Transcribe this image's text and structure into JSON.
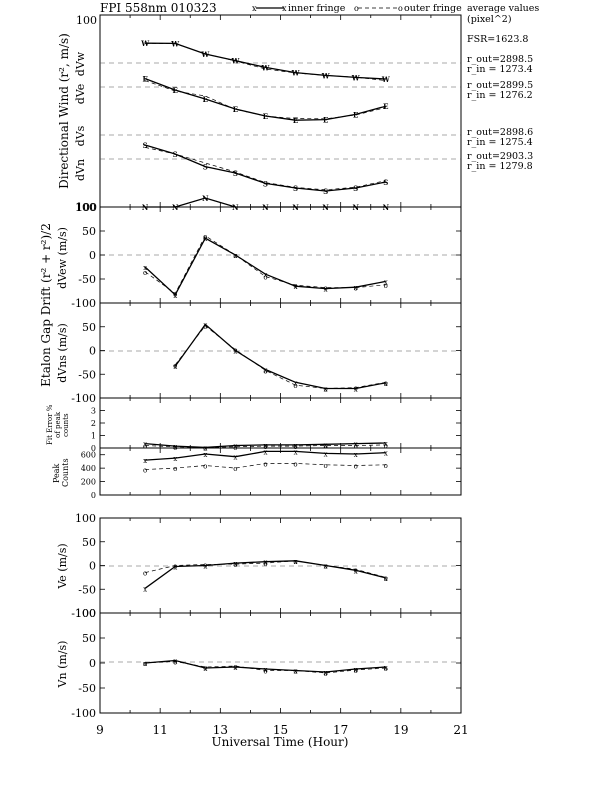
{
  "title": "FPI 558nm 010323",
  "legend": {
    "inner": "inner fringe",
    "outer": "outer fringe",
    "average_label": "average values",
    "average_units": "(pixel^2)",
    "fsr": "FSR=1623.8",
    "radii": [
      [
        "r_out=2898.5",
        "r_in = 1273.4"
      ],
      [
        "r_out=2899.5",
        "r_in = 1276.2"
      ],
      [
        "r_out=2898.6",
        "r_in = 1275.4"
      ],
      [
        "r_out=2903.3",
        "r_in = 1279.8"
      ]
    ]
  },
  "xaxis": {
    "label": "Universal Time (Hour)",
    "min": 9,
    "max": 21,
    "ticks": [
      "9",
      "11",
      "13",
      "15",
      "17",
      "19",
      "21"
    ]
  },
  "panel_labels": {
    "group1_ylabel": "Directional Wind (r², m/s)",
    "group2_ylabel": "Etalon Gap Drift (r² + r²)/2",
    "dvw": "dVw",
    "dve": "dVe",
    "dvs": "dVs",
    "dvn": "dVn",
    "dvew": "dVew (m/s)",
    "dvns": "dVns (m/s)",
    "fit_error": "Fit Error % of peak counts",
    "peak_counts": "Peak Counts",
    "ve": "Ve (m/s)",
    "vn": "Vn (m/s)"
  },
  "chart_data": [
    {
      "type": "line",
      "panel": "directional-wind",
      "ylabel": "Directional Wind (r², m/s)",
      "yticks": [
        "100",
        "",
        "",
        "",
        "",
        "",
        "",
        "",
        "100"
      ],
      "x": [
        10.5,
        11.5,
        12.5,
        13.5,
        14.5,
        15.5,
        16.5,
        17.5,
        18.5
      ],
      "series": [
        {
          "name": "dVw",
          "inner": [
            99,
            98,
            45,
            12,
            -22,
            -48,
            -62,
            -72,
            -80
          ],
          "outer": [
            98,
            97,
            46,
            10,
            -30,
            -50,
            -62,
            -71,
            -88
          ]
        },
        {
          "name": "dVe",
          "inner": [
            42,
            -15,
            -60,
            -110,
            -145,
            -166,
            -163,
            -137,
            -96
          ],
          "outer": [
            32,
            -20,
            -45,
            -112,
            -145,
            -158,
            -159,
            -140,
            -103
          ]
        },
        {
          "name": "dVs",
          "inner": [
            -50,
            -95,
            -158,
            -190,
            -242,
            -265,
            -280,
            -265,
            -235
          ],
          "outer": [
            -62,
            -95,
            -140,
            -185,
            -238,
            -262,
            -274,
            -261,
            -228
          ]
        },
        {
          "name": "dVn",
          "inner": [
            -320,
            -338,
            -195,
            -285,
            -325,
            -350,
            -360,
            -365,
            -362
          ],
          "outer": [
            -305,
            -330,
            -195,
            -282,
            -318,
            -340,
            -352,
            -362,
            -362
          ]
        }
      ]
    },
    {
      "type": "line",
      "panel": "dvew",
      "ylabel": "dVew (m/s)",
      "ylim": [
        -100,
        100
      ],
      "yticks": [
        -100,
        -50,
        0,
        50,
        100
      ],
      "x": [
        10.5,
        11.5,
        12.5,
        13.5,
        14.5,
        15.5,
        16.5,
        17.5,
        18.5
      ],
      "series": [
        {
          "name": "inner fringe",
          "values": [
            -25,
            -83,
            35,
            0,
            -40,
            -65,
            -70,
            -67,
            -55
          ]
        },
        {
          "name": "outer fringe",
          "values": [
            -35,
            -80,
            40,
            0,
            -45,
            -63,
            -68,
            -68,
            -62
          ]
        }
      ]
    },
    {
      "type": "line",
      "panel": "dvns",
      "ylabel": "dVns (m/s)",
      "ylim": [
        -100,
        100
      ],
      "yticks": [
        -100,
        -50,
        0,
        50,
        100
      ],
      "x": [
        11.5,
        12.5,
        13.5,
        14.5,
        15.5,
        16.5,
        17.5,
        18.5
      ],
      "series": [
        {
          "name": "inner fringe",
          "values": [
            -33,
            55,
            0,
            -40,
            -67,
            -80,
            -80,
            -68
          ]
        },
        {
          "name": "outer fringe",
          "values": [
            -30,
            52,
            2,
            -42,
            -73,
            -80,
            -78,
            -67
          ]
        }
      ]
    },
    {
      "type": "line",
      "panel": "fit-error",
      "ylabel": "Fit Error % of peak counts",
      "ylim": [
        0,
        4
      ],
      "yticks": [
        0,
        1,
        2,
        3,
        4
      ],
      "x": [
        10.5,
        11.5,
        12.5,
        13.5,
        14.5,
        15.5,
        16.5,
        17.5,
        18.5
      ],
      "series": [
        {
          "name": "inner fringe",
          "values": [
            0.35,
            0.15,
            0.05,
            0.2,
            0.25,
            0.25,
            0.3,
            0.35,
            0.4
          ]
        },
        {
          "name": "outer fringe",
          "values": [
            0.2,
            0.1,
            0.05,
            0.1,
            0.15,
            0.15,
            0.2,
            0.2,
            0.25
          ]
        }
      ]
    },
    {
      "type": "line",
      "panel": "peak-counts",
      "ylabel": "Peak Counts",
      "ylim": [
        0,
        700
      ],
      "yticks": [
        0,
        200,
        400,
        600
      ],
      "x": [
        10.5,
        11.5,
        12.5,
        13.5,
        14.5,
        15.5,
        16.5,
        17.5,
        18.5
      ],
      "series": [
        {
          "name": "inner fringe",
          "values": [
            520,
            550,
            610,
            570,
            650,
            650,
            620,
            610,
            630
          ]
        },
        {
          "name": "outer fringe",
          "values": [
            380,
            400,
            440,
            400,
            470,
            470,
            450,
            440,
            450
          ]
        }
      ]
    },
    {
      "type": "line",
      "panel": "ve",
      "ylabel": "Ve (m/s)",
      "ylim": [
        -100,
        100
      ],
      "yticks": [
        -100,
        -50,
        0,
        50,
        100
      ],
      "x": [
        10.5,
        11.5,
        12.5,
        13.5,
        14.5,
        15.5,
        16.5,
        17.5,
        18.5
      ],
      "series": [
        {
          "name": "inner fringe",
          "values": [
            -48,
            -2,
            0,
            5,
            8,
            10,
            0,
            -10,
            -26
          ]
        },
        {
          "name": "outer fringe",
          "values": [
            -15,
            0,
            2,
            3,
            5,
            10,
            0,
            -8,
            -25
          ]
        }
      ]
    },
    {
      "type": "line",
      "panel": "vn",
      "ylabel": "Vn (m/s)",
      "ylim": [
        -100,
        100
      ],
      "yticks": [
        -100,
        -50,
        0,
        50,
        100
      ],
      "x": [
        10.5,
        11.5,
        12.5,
        13.5,
        14.5,
        15.5,
        16.5,
        17.5,
        18.5
      ],
      "series": [
        {
          "name": "inner fringe",
          "values": [
            0,
            5,
            -10,
            -8,
            -12,
            -15,
            -18,
            -12,
            -8
          ]
        },
        {
          "name": "outer fringe",
          "values": [
            0,
            3,
            -8,
            -6,
            -15,
            -15,
            -20,
            -14,
            -10
          ]
        }
      ]
    }
  ]
}
